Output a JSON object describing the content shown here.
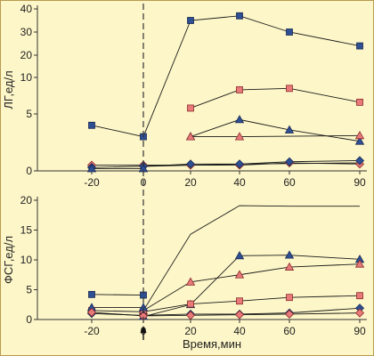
{
  "colors": {
    "background": "#fdf6c8",
    "border": "#b89a4e",
    "axis": "#333333",
    "line": "#1a1a1a",
    "blue": "#2f4f93",
    "red": "#e87a7a",
    "redStroke": "#8a2a2a",
    "blueStroke": "#1a2a55"
  },
  "chart_data": [
    {
      "type": "line",
      "ylabel": "ЛГ,ед/л",
      "xlabel": "",
      "x": [
        -20,
        0,
        20,
        40,
        60,
        90
      ],
      "x_ticks": [
        "-20",
        "0",
        "20",
        "40",
        "60",
        "90"
      ],
      "y_ticks": [
        "0",
        "5",
        "10",
        "20",
        "30",
        "40"
      ],
      "y_tick_values": [
        0,
        5,
        10,
        20,
        30,
        40
      ],
      "y_scale": "non-linear (compressed above 10)",
      "series": [
        {
          "marker": "square",
          "color": "#2f4f93",
          "values": [
            4,
            3,
            35,
            37,
            30,
            24
          ]
        },
        {
          "marker": "square",
          "color": "#e87a7a",
          "values": [
            null,
            null,
            5.8,
            8.3,
            8.5,
            6.6
          ]
        },
        {
          "marker": "triangle",
          "color": "#2f4f93",
          "values": [
            null,
            null,
            3,
            4.5,
            3.6,
            2.6
          ]
        },
        {
          "marker": "triangle",
          "color": "#e87a7a",
          "values": [
            null,
            null,
            3,
            3,
            null,
            3.1
          ]
        },
        {
          "marker": "diamond",
          "color": "#e87a7a",
          "values": [
            0.5,
            0.5,
            0.5,
            0.5,
            0.7,
            0.6
          ]
        },
        {
          "marker": "diamond",
          "color": "#2f4f93",
          "values": [
            0.3,
            0.4,
            0.6,
            0.6,
            0.8,
            0.9
          ]
        },
        {
          "marker": "triangle",
          "color": "#2f4f93",
          "values": [
            0.2,
            0.2,
            null,
            null,
            null,
            null
          ]
        },
        {
          "marker": "none",
          "color": "#1a1a1a",
          "values": [
            null,
            0.4,
            null,
            0.6,
            null,
            0.7
          ]
        }
      ]
    },
    {
      "type": "line",
      "ylabel": "ФСГ,ед/л",
      "xlabel": "Время,мин",
      "x": [
        -20,
        0,
        20,
        40,
        60,
        90
      ],
      "x_ticks": [
        "-20",
        "0",
        "20",
        "40",
        "60",
        "90"
      ],
      "y_ticks": [
        "0",
        "5",
        "10",
        "15",
        "20"
      ],
      "ylim": [
        0,
        20
      ],
      "series": [
        {
          "marker": "none",
          "color": "#1a1a1a",
          "values": [
            null,
            1.5,
            14.3,
            19.1,
            19.0,
            19.0
          ]
        },
        {
          "marker": "triangle",
          "color": "#2f4f93",
          "values": [
            null,
            0.5,
            2.5,
            10.7,
            10.8,
            10.1
          ]
        },
        {
          "marker": "triangle",
          "color": "#e87a7a",
          "values": [
            null,
            1.5,
            6.3,
            7.5,
            8.8,
            9.3
          ]
        },
        {
          "marker": "square",
          "color": "#2f4f93",
          "values": [
            4.2,
            4.1,
            null,
            null,
            null,
            null
          ]
        },
        {
          "marker": "square",
          "color": "#e87a7a",
          "values": [
            1.5,
            1.3,
            2.6,
            3.1,
            3.7,
            4.0
          ]
        },
        {
          "marker": "triangle",
          "color": "#2f4f93",
          "values": [
            2.0,
            2.0,
            null,
            null,
            null,
            null
          ]
        },
        {
          "marker": "diamond",
          "color": "#2f4f93",
          "values": [
            1.0,
            0.7,
            0.9,
            0.9,
            1.1,
            1.9
          ]
        },
        {
          "marker": "diamond",
          "color": "#e87a7a",
          "values": [
            1.2,
            0.6,
            0.7,
            0.8,
            0.9,
            1.1
          ]
        }
      ]
    }
  ],
  "annotation": {
    "arrow_at_x": 0
  }
}
